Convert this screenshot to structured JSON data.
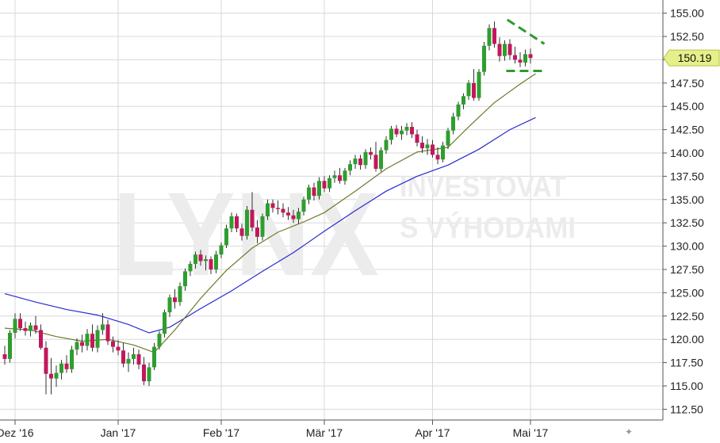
{
  "watermark": {
    "brand": "LYNX",
    "line1": "INVESTOVAT",
    "line2": "S VÝHODAMI"
  },
  "nav_glyph": "✦",
  "chart_data": {
    "type": "candlestick",
    "y_axis": {
      "position": "right",
      "range": [
        111.5,
        156.5
      ],
      "ticks": [
        "112.50",
        "115.00",
        "117.50",
        "120.00",
        "122.50",
        "125.00",
        "127.50",
        "130.00",
        "132.50",
        "135.00",
        "137.50",
        "140.00",
        "142.50",
        "145.00",
        "147.50",
        "150.00",
        "152.50",
        "155.00"
      ]
    },
    "x_axis": {
      "labels": [
        "Dez '16",
        "Jan '17",
        "Feb '17",
        "Mär '17",
        "Apr '17",
        "Mai '17"
      ]
    },
    "grid": true,
    "colors": {
      "up": "#2e9e2e",
      "down": "#c2185b",
      "ma_short": "#6b7a2a",
      "ma_long": "#2a2ad0",
      "grid": "#d8d8d8",
      "pattern": "#2e9a2e",
      "price_tag": "#e6ef8a"
    },
    "last_price": {
      "label": "150.19",
      "value": 150.19
    },
    "month_label_index": [
      2,
      22,
      42,
      62,
      83,
      102
    ],
    "candles": [
      [
        118.4,
        119.3,
        117.3,
        117.9
      ],
      [
        117.9,
        121.0,
        117.5,
        120.7
      ],
      [
        120.7,
        122.8,
        120.1,
        122.2
      ],
      [
        122.2,
        122.8,
        120.9,
        121.2
      ],
      [
        121.2,
        121.9,
        120.4,
        120.9
      ],
      [
        120.9,
        121.8,
        120.3,
        121.5
      ],
      [
        121.5,
        122.5,
        120.6,
        121.0
      ],
      [
        121.0,
        121.6,
        118.9,
        119.1
      ],
      [
        119.1,
        119.8,
        114.1,
        116.3
      ],
      [
        116.3,
        118.0,
        114.1,
        115.8
      ],
      [
        115.8,
        117.2,
        114.9,
        116.4
      ],
      [
        116.4,
        117.8,
        115.7,
        117.4
      ],
      [
        117.4,
        118.3,
        116.4,
        116.8
      ],
      [
        116.8,
        119.3,
        116.4,
        118.9
      ],
      [
        118.9,
        120.1,
        118.3,
        119.7
      ],
      [
        119.7,
        120.5,
        118.6,
        119.3
      ],
      [
        119.3,
        121.1,
        118.8,
        120.6
      ],
      [
        120.6,
        121.6,
        118.7,
        119.1
      ],
      [
        119.1,
        121.5,
        118.6,
        121.0
      ],
      [
        121.0,
        122.8,
        120.5,
        121.6
      ],
      [
        121.6,
        122.1,
        119.4,
        119.8
      ],
      [
        119.8,
        120.3,
        118.6,
        119.2
      ],
      [
        119.2,
        119.9,
        118.3,
        118.8
      ],
      [
        118.8,
        119.6,
        117.0,
        117.4
      ],
      [
        117.4,
        118.6,
        116.5,
        117.9
      ],
      [
        117.9,
        119.1,
        117.3,
        118.4
      ],
      [
        118.4,
        118.9,
        116.8,
        117.3
      ],
      [
        117.3,
        118.1,
        115.1,
        115.5
      ],
      [
        115.5,
        117.5,
        115.0,
        117.0
      ],
      [
        117.0,
        119.6,
        116.7,
        119.2
      ],
      [
        119.2,
        120.9,
        118.9,
        120.6
      ],
      [
        120.6,
        123.2,
        120.2,
        122.9
      ],
      [
        122.9,
        124.8,
        122.4,
        124.5
      ],
      [
        124.5,
        125.4,
        123.3,
        124.0
      ],
      [
        124.0,
        126.1,
        123.6,
        125.7
      ],
      [
        125.7,
        127.6,
        125.2,
        127.3
      ],
      [
        127.3,
        128.4,
        126.8,
        128.1
      ],
      [
        128.1,
        129.4,
        127.6,
        129.1
      ],
      [
        129.1,
        129.6,
        127.9,
        128.4
      ],
      [
        128.4,
        129.0,
        127.4,
        128.6
      ],
      [
        128.6,
        128.9,
        127.0,
        127.5
      ],
      [
        127.5,
        129.5,
        127.1,
        129.1
      ],
      [
        129.1,
        130.4,
        128.7,
        130.1
      ],
      [
        130.1,
        132.3,
        129.8,
        131.9
      ],
      [
        131.9,
        133.6,
        131.5,
        133.2
      ],
      [
        133.2,
        133.5,
        131.5,
        131.9
      ],
      [
        131.9,
        132.4,
        130.6,
        131.1
      ],
      [
        131.1,
        134.3,
        130.7,
        133.9
      ],
      [
        133.9,
        135.8,
        131.6,
        132.0
      ],
      [
        132.0,
        132.8,
        130.3,
        131.0
      ],
      [
        131.0,
        133.5,
        130.6,
        133.2
      ],
      [
        133.2,
        135.0,
        132.8,
        134.6
      ],
      [
        134.6,
        135.0,
        133.6,
        134.1
      ],
      [
        134.1,
        134.9,
        133.4,
        134.0
      ],
      [
        134.0,
        134.6,
        133.1,
        133.6
      ],
      [
        133.6,
        134.2,
        132.8,
        133.3
      ],
      [
        133.3,
        133.9,
        132.5,
        132.9
      ],
      [
        132.9,
        134.1,
        132.4,
        133.7
      ],
      [
        133.7,
        135.3,
        133.3,
        135.0
      ],
      [
        135.0,
        136.6,
        134.5,
        136.3
      ],
      [
        136.3,
        136.8,
        134.9,
        135.4
      ],
      [
        135.4,
        137.4,
        135.0,
        137.0
      ],
      [
        137.0,
        137.5,
        135.8,
        136.2
      ],
      [
        136.2,
        137.6,
        135.8,
        137.3
      ],
      [
        137.3,
        138.1,
        136.8,
        137.6
      ],
      [
        137.6,
        138.4,
        136.7,
        137.0
      ],
      [
        137.0,
        138.4,
        136.6,
        138.1
      ],
      [
        138.1,
        139.2,
        137.6,
        138.8
      ],
      [
        138.8,
        139.8,
        138.3,
        139.4
      ],
      [
        139.4,
        139.8,
        138.2,
        138.7
      ],
      [
        138.7,
        140.4,
        138.3,
        140.1
      ],
      [
        140.1,
        140.6,
        139.3,
        139.8
      ],
      [
        139.8,
        141.2,
        138.0,
        138.3
      ],
      [
        138.3,
        140.6,
        138.0,
        140.3
      ],
      [
        140.3,
        141.8,
        139.9,
        141.4
      ],
      [
        141.4,
        142.9,
        140.9,
        142.6
      ],
      [
        142.6,
        143.0,
        141.7,
        142.0
      ],
      [
        142.0,
        142.9,
        141.4,
        142.4
      ],
      [
        142.4,
        143.2,
        141.9,
        142.8
      ],
      [
        142.8,
        143.3,
        141.6,
        142.0
      ],
      [
        142.0,
        142.5,
        140.7,
        141.1
      ],
      [
        141.1,
        141.8,
        140.0,
        140.5
      ],
      [
        140.5,
        141.5,
        139.8,
        140.9
      ],
      [
        140.9,
        141.4,
        139.5,
        139.8
      ],
      [
        139.8,
        140.6,
        138.8,
        139.3
      ],
      [
        139.3,
        141.2,
        139.0,
        140.8
      ],
      [
        140.8,
        142.7,
        140.4,
        142.4
      ],
      [
        142.4,
        144.3,
        142.0,
        143.9
      ],
      [
        143.9,
        145.5,
        143.5,
        145.2
      ],
      [
        145.2,
        146.4,
        144.7,
        146.1
      ],
      [
        146.1,
        147.8,
        145.7,
        147.5
      ],
      [
        147.5,
        149.0,
        145.6,
        145.9
      ],
      [
        145.9,
        149.0,
        145.6,
        148.7
      ],
      [
        148.7,
        151.9,
        148.3,
        151.5
      ],
      [
        151.5,
        153.8,
        151.0,
        153.4
      ],
      [
        153.4,
        154.1,
        151.3,
        151.7
      ],
      [
        151.7,
        152.4,
        149.8,
        150.4
      ],
      [
        150.4,
        152.1,
        149.9,
        151.7
      ],
      [
        151.7,
        152.2,
        150.0,
        150.5
      ],
      [
        150.5,
        151.4,
        149.6,
        150.0
      ],
      [
        150.0,
        150.8,
        149.2,
        149.7
      ],
      [
        149.7,
        151.1,
        149.3,
        150.6
      ],
      [
        150.6,
        151.2,
        149.6,
        150.19
      ]
    ],
    "ma_short": [
      [
        0,
        121.2
      ],
      [
        5,
        121.0
      ],
      [
        10,
        120.3
      ],
      [
        15,
        119.8
      ],
      [
        20,
        120.0
      ],
      [
        25,
        119.4
      ],
      [
        29,
        118.6
      ],
      [
        33,
        121.0
      ],
      [
        38,
        124.4
      ],
      [
        43,
        127.4
      ],
      [
        48,
        129.8
      ],
      [
        53,
        131.5
      ],
      [
        58,
        132.6
      ],
      [
        62,
        133.6
      ],
      [
        68,
        135.9
      ],
      [
        74,
        138.3
      ],
      [
        80,
        140.1
      ],
      [
        86,
        140.6
      ],
      [
        90,
        142.8
      ],
      [
        95,
        145.4
      ],
      [
        100,
        147.4
      ],
      [
        103,
        148.5
      ]
    ],
    "ma_long": [
      [
        0,
        124.9
      ],
      [
        6,
        124.0
      ],
      [
        12,
        123.2
      ],
      [
        18,
        122.6
      ],
      [
        24,
        121.6
      ],
      [
        28,
        120.7
      ],
      [
        32,
        121.3
      ],
      [
        38,
        123.3
      ],
      [
        44,
        125.2
      ],
      [
        50,
        127.3
      ],
      [
        56,
        129.3
      ],
      [
        62,
        131.6
      ],
      [
        68,
        133.8
      ],
      [
        74,
        135.9
      ],
      [
        80,
        137.5
      ],
      [
        86,
        138.7
      ],
      [
        92,
        140.4
      ],
      [
        98,
        142.5
      ],
      [
        103,
        143.8
      ]
    ],
    "pattern_lines": [
      {
        "from": [
          97.5,
          154.3
        ],
        "to": [
          104.7,
          151.7
        ]
      },
      {
        "from": [
          97.3,
          148.8
        ],
        "to": [
          104.9,
          148.8
        ]
      }
    ]
  }
}
